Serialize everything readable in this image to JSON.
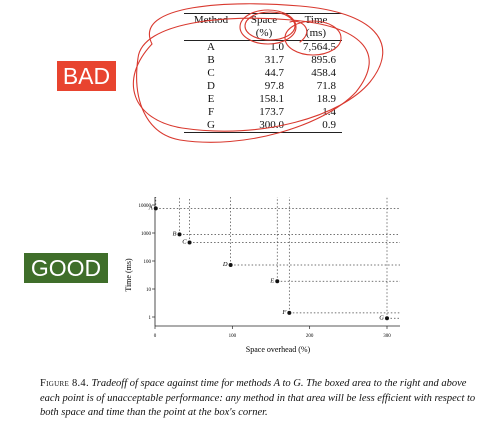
{
  "labels": {
    "bad": "BAD",
    "good": "GOOD"
  },
  "colors": {
    "bad": "#e8442f",
    "good": "#3f6e2a",
    "annotation": "#d9392f"
  },
  "table": {
    "headers": [
      [
        "Method",
        ""
      ],
      [
        "Space",
        "(%)"
      ],
      [
        "Time",
        "(ms)"
      ]
    ],
    "rows": [
      {
        "method": "A",
        "space": "1.0",
        "time": "7,564.5"
      },
      {
        "method": "B",
        "space": "31.7",
        "time": "895.6"
      },
      {
        "method": "C",
        "space": "44.7",
        "time": "458.4"
      },
      {
        "method": "D",
        "space": "97.8",
        "time": "71.8"
      },
      {
        "method": "E",
        "space": "158.1",
        "time": "18.9"
      },
      {
        "method": "F",
        "space": "173.7",
        "time": "1.4"
      },
      {
        "method": "G",
        "space": "300.0",
        "time": "0.9"
      }
    ]
  },
  "chart_data": {
    "type": "scatter",
    "xlabel": "Space overhead (%)",
    "ylabel": "Time (ms)",
    "xlim": [
      0,
      320
    ],
    "ylim": [
      1,
      10000
    ],
    "yscale": "log",
    "x_ticks": [
      "0",
      "100",
      "200",
      "300"
    ],
    "y_ticks": [
      "1",
      "10",
      "100",
      "1000",
      "10000"
    ],
    "grid": false,
    "boxes": "dotted box to upper right of each point",
    "points": [
      {
        "name": "A",
        "x": 1.0,
        "y": 7564.5
      },
      {
        "name": "B",
        "x": 31.7,
        "y": 895.6
      },
      {
        "name": "C",
        "x": 44.7,
        "y": 458.4
      },
      {
        "name": "D",
        "x": 97.8,
        "y": 71.8
      },
      {
        "name": "E",
        "x": 158.1,
        "y": 18.9
      },
      {
        "name": "F",
        "x": 173.7,
        "y": 1.4
      },
      {
        "name": "G",
        "x": 300.0,
        "y": 0.9
      }
    ]
  },
  "caption": {
    "label": "Figure 8.4.",
    "text": "Tradeoff of space against time for methods A to G. The boxed area to the right and above each point is of unacceptable performance: any method in that area will be less efficient with respect to both space and time than the point at the box's corner."
  }
}
